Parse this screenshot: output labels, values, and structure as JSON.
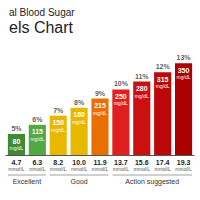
{
  "chart_data": {
    "type": "bar",
    "title": "al Blood Sugar",
    "subtitle": "els Chart",
    "categories": [
      "4.7",
      "6.3",
      "8.2",
      "10.0",
      "11.9",
      "13.7",
      "15.6",
      "17.4",
      "19.3"
    ],
    "values": [
      80,
      115,
      150,
      180,
      215,
      250,
      280,
      315,
      350
    ],
    "colors": [
      "#3e8c30",
      "#52a843",
      "#e8b800",
      "#e8b800",
      "#e87000",
      "#e02020",
      "#cc1010",
      "#bb0808",
      "#aa0000"
    ],
    "data_labels": true,
    "pct_labels": [
      "5%",
      "6%",
      "7%",
      "8%",
      "9%",
      "10%",
      "11%",
      "12%",
      "13%"
    ],
    "unit": "mg/dL",
    "category_unit": "mmol/L",
    "groups": [
      {
        "label": "Excellent",
        "categories": [
          "4.7",
          "6.3"
        ]
      },
      {
        "label": "Good",
        "categories": [
          "8.2",
          "10.0",
          "11.9"
        ]
      },
      {
        "label": "Action suggested",
        "categories": [
          "13.7",
          "15.6",
          "17.4",
          "19.3"
        ]
      }
    ],
    "ylim": [
      0,
      400
    ],
    "grid": false,
    "tick_labels": "x"
  }
}
